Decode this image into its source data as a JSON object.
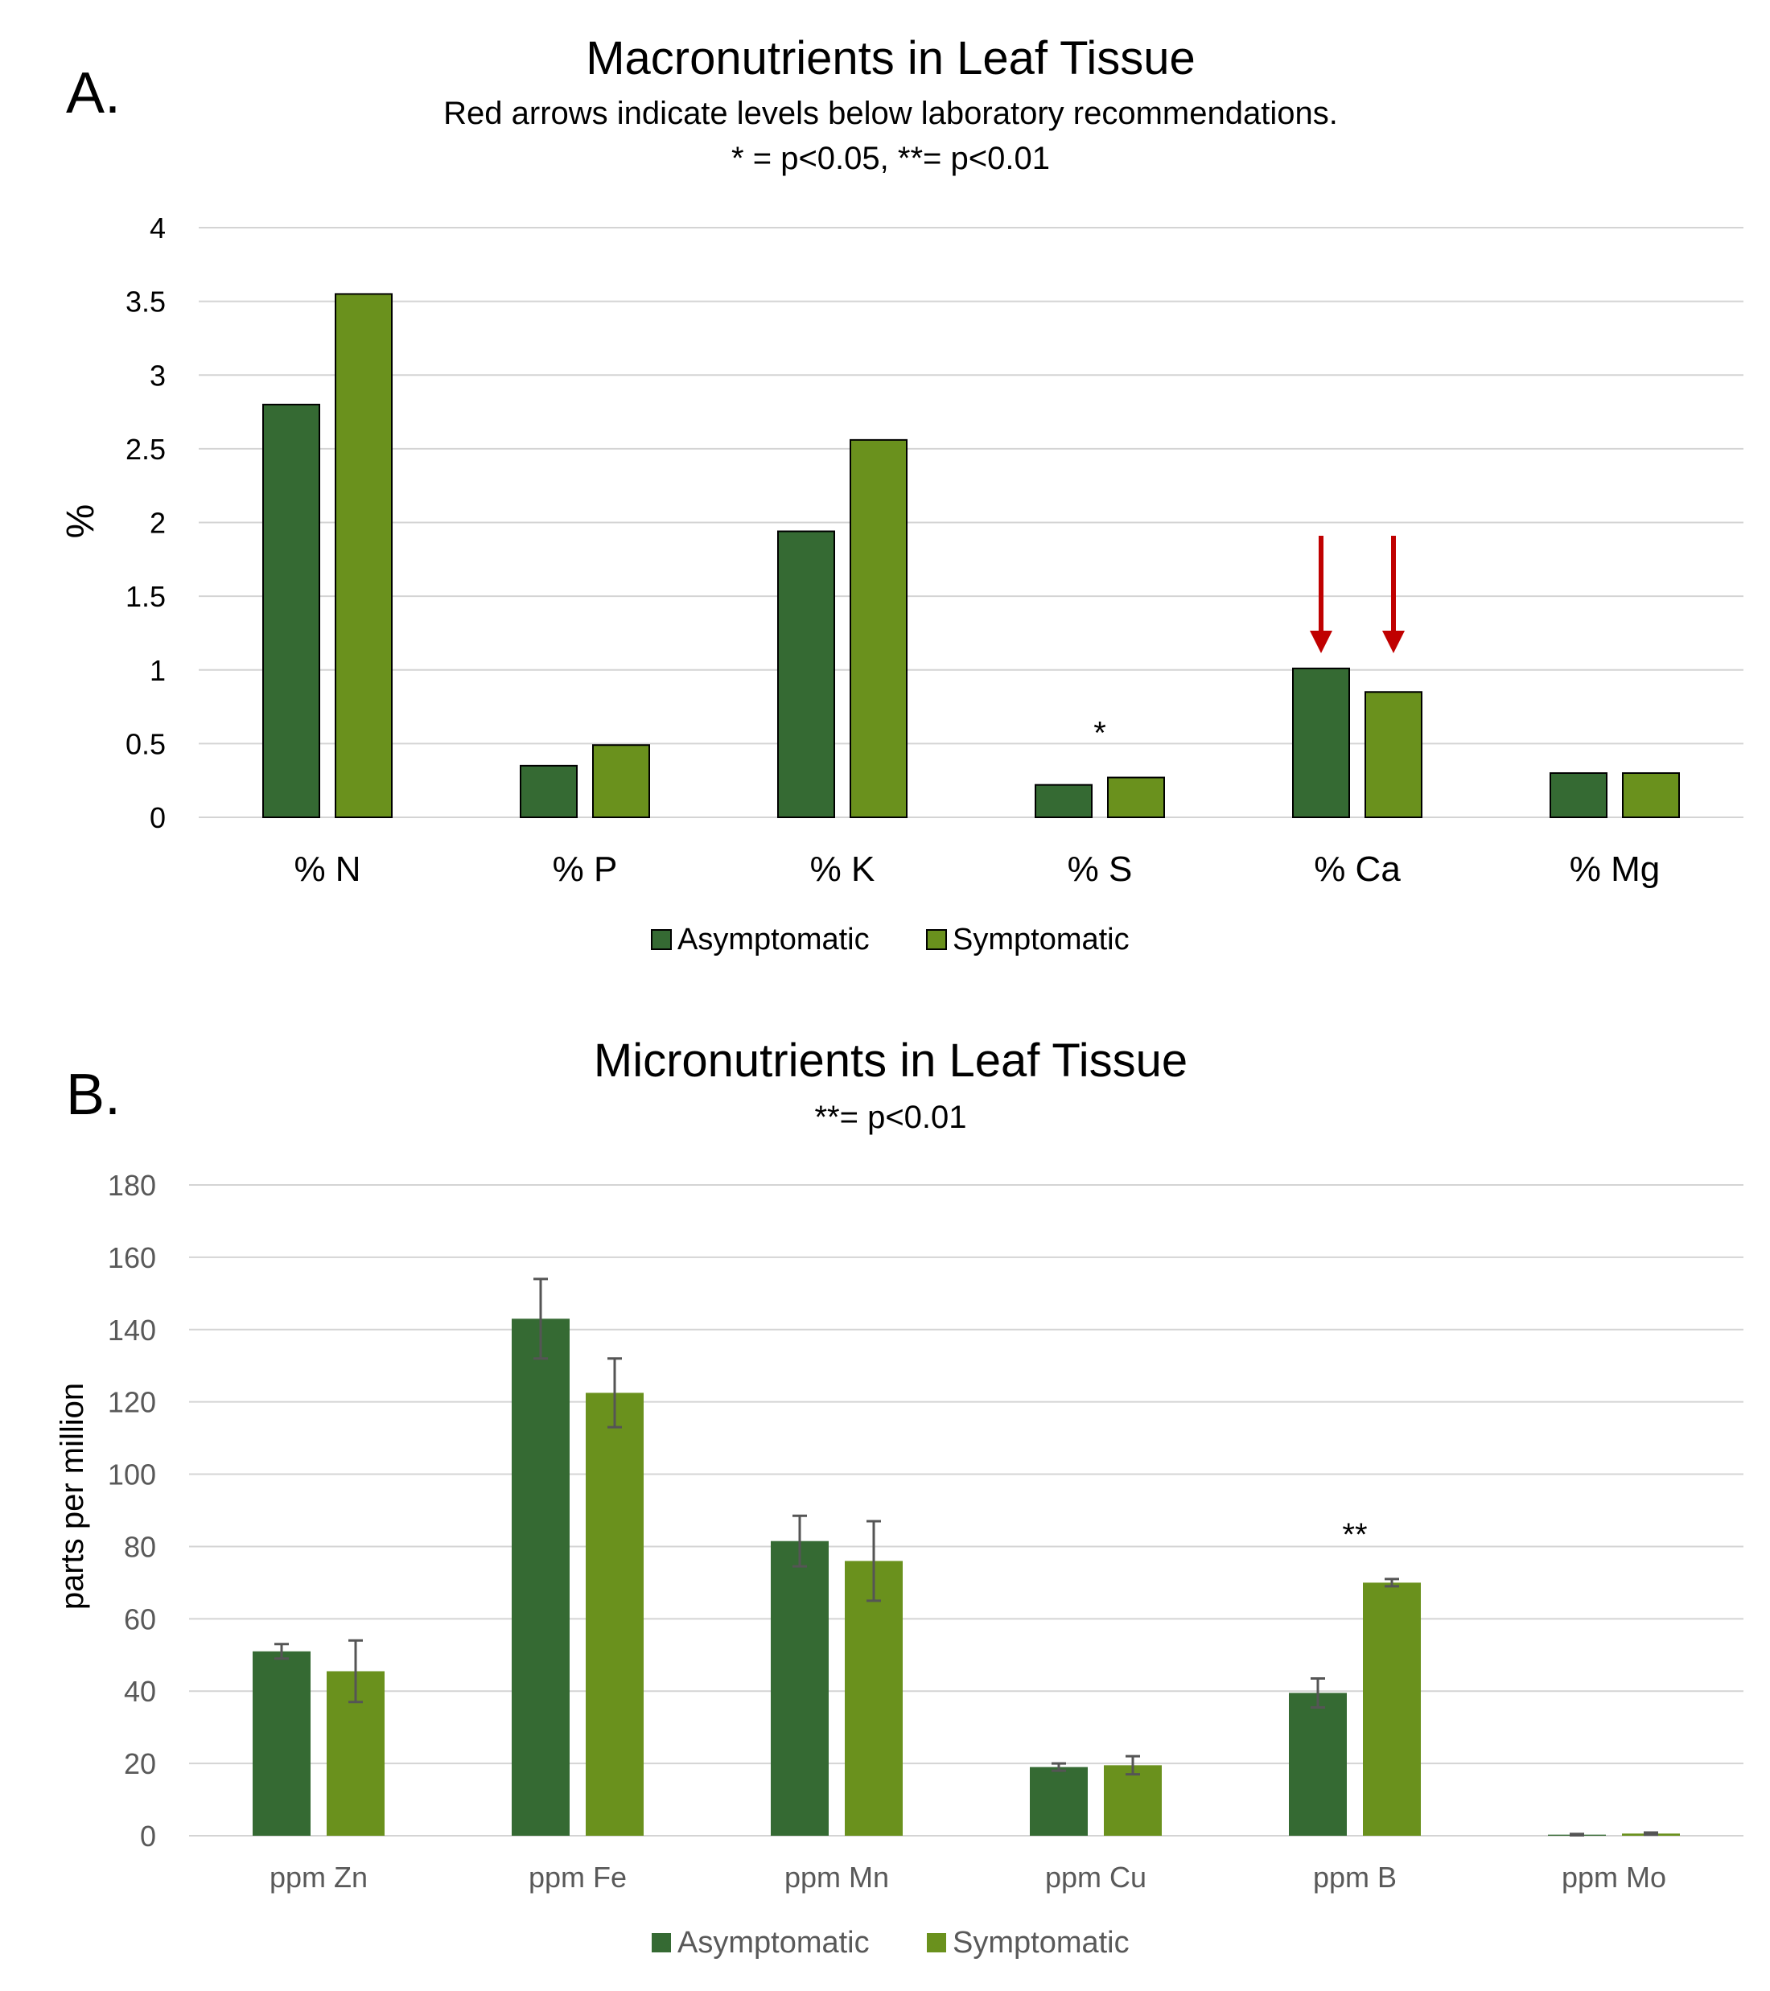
{
  "colors": {
    "asymptomatic": "#356a33",
    "symptomatic": "#6a911d",
    "grid": "#d4d4d4",
    "arrow": "#c00000",
    "error_bar": "#555555",
    "text": "#000000",
    "tick_text": "#595959"
  },
  "chart_data": [
    {
      "type": "bar",
      "panel_label": "A.",
      "title": "Macronutrients in Leaf Tissue",
      "subtitle": "Red arrows indicate levels below laboratory recommendations.",
      "subtitle2": "* = p<0.05,  **= p<0.01",
      "xlabel": "",
      "ylabel": "%",
      "ylim": [
        0,
        4
      ],
      "yticks": [
        0,
        0.5,
        1,
        1.5,
        2,
        2.5,
        3,
        3.5,
        4
      ],
      "ytick_labels": [
        "0",
        "0.5",
        "1",
        "1.5",
        "2",
        "2.5",
        "3",
        "3.5",
        "4"
      ],
      "grid": true,
      "legend_position": "bottom",
      "categories": [
        "% N",
        "% P",
        "% K",
        "% S",
        "% Ca",
        "% Mg"
      ],
      "series": [
        {
          "name": "Asymptomatic",
          "values": [
            2.8,
            0.35,
            1.94,
            0.22,
            1.01,
            0.3
          ]
        },
        {
          "name": "Symptomatic",
          "values": [
            3.55,
            0.49,
            2.56,
            0.27,
            0.85,
            0.3
          ]
        }
      ],
      "annotations": [
        {
          "text": "*",
          "category": "% S"
        }
      ],
      "arrows": [
        {
          "category": "% Ca",
          "series": "Asymptomatic"
        },
        {
          "category": "% Ca",
          "series": "Symptomatic"
        }
      ]
    },
    {
      "type": "bar",
      "panel_label": "B.",
      "title": "Micronutrients in Leaf Tissue",
      "subtitle": "**= p<0.01",
      "xlabel": "",
      "ylabel": "parts per million",
      "ylim": [
        0,
        180
      ],
      "yticks": [
        0,
        20,
        40,
        60,
        80,
        100,
        120,
        140,
        160,
        180
      ],
      "ytick_labels": [
        "0",
        "20",
        "40",
        "60",
        "80",
        "100",
        "120",
        "140",
        "160",
        "180"
      ],
      "grid": true,
      "legend_position": "bottom",
      "categories": [
        "ppm Zn",
        "ppm Fe",
        "ppm Mn",
        "ppm Cu",
        "ppm B",
        "ppm Mo"
      ],
      "series": [
        {
          "name": "Asymptomatic",
          "values": [
            51,
            143,
            81.5,
            19,
            39.5,
            0.3
          ],
          "errors": [
            2,
            11,
            7,
            1,
            4,
            0.2
          ]
        },
        {
          "name": "Symptomatic",
          "values": [
            45.5,
            122.5,
            76,
            19.5,
            70,
            0.6
          ],
          "errors": [
            8.5,
            9.5,
            11,
            2.5,
            1,
            0.3
          ]
        }
      ],
      "annotations": [
        {
          "text": "**",
          "category": "ppm B"
        }
      ]
    }
  ]
}
